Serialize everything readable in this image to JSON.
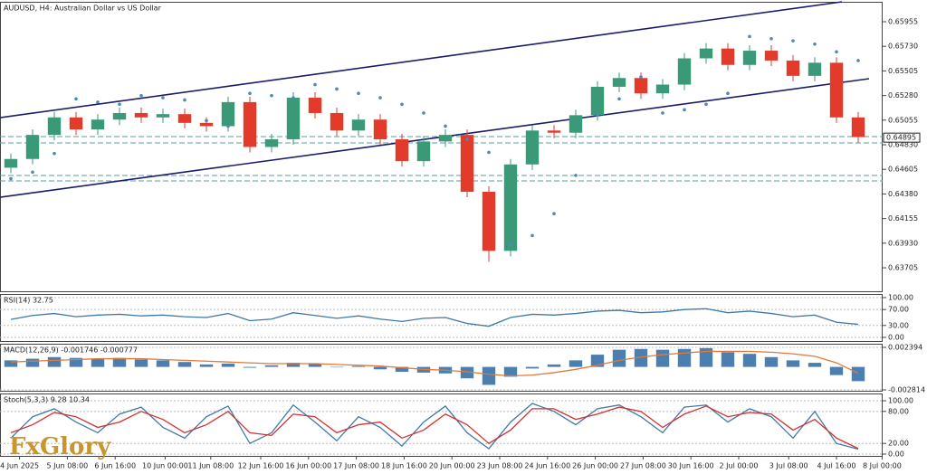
{
  "chart_data": [
    {
      "type": "candlestick",
      "title": "AUDUSD, H4:  Australian Dollar vs US Dollar",
      "logo": "FxGlory",
      "open": [
        0.6462,
        0.647,
        0.6492,
        0.6508,
        0.6497,
        0.6506,
        0.6512,
        0.6508,
        0.6511,
        0.6503,
        0.65,
        0.6522,
        0.6481,
        0.6488,
        0.6526,
        0.6512,
        0.6496,
        0.6506,
        0.6488,
        0.6468,
        0.6486,
        0.6492,
        0.644,
        0.6386,
        0.6465,
        0.6496,
        0.6494,
        0.651,
        0.6536,
        0.6544,
        0.653,
        0.6538,
        0.6562,
        0.6571,
        0.6556,
        0.6569,
        0.656,
        0.6546,
        0.6558,
        0.6508
      ],
      "high": [
        0.6475,
        0.6497,
        0.6513,
        0.6513,
        0.6511,
        0.6517,
        0.6517,
        0.6516,
        0.6516,
        0.6508,
        0.6527,
        0.6527,
        0.6493,
        0.6531,
        0.6531,
        0.6517,
        0.6511,
        0.6511,
        0.6493,
        0.6491,
        0.6497,
        0.6497,
        0.6445,
        0.647,
        0.6501,
        0.6501,
        0.6515,
        0.6541,
        0.6549,
        0.6549,
        0.6543,
        0.6567,
        0.6576,
        0.6576,
        0.6574,
        0.6574,
        0.6565,
        0.6563,
        0.6563,
        0.6513
      ],
      "low": [
        0.6457,
        0.6465,
        0.6487,
        0.6492,
        0.6492,
        0.6501,
        0.6503,
        0.6503,
        0.6498,
        0.6495,
        0.6495,
        0.6476,
        0.6476,
        0.6483,
        0.6507,
        0.6491,
        0.6491,
        0.6483,
        0.6463,
        0.6463,
        0.6481,
        0.6435,
        0.6376,
        0.6381,
        0.646,
        0.6489,
        0.6489,
        0.6505,
        0.6531,
        0.6525,
        0.6525,
        0.6533,
        0.6557,
        0.6551,
        0.6551,
        0.6555,
        0.6541,
        0.6541,
        0.6503,
        0.6485
      ],
      "close": [
        0.647,
        0.6492,
        0.6508,
        0.6497,
        0.6506,
        0.6512,
        0.6508,
        0.6511,
        0.6503,
        0.65,
        0.6522,
        0.6481,
        0.6488,
        0.6526,
        0.6512,
        0.6496,
        0.6506,
        0.6488,
        0.6468,
        0.6486,
        0.6492,
        0.644,
        0.6386,
        0.6465,
        0.6496,
        0.6494,
        0.651,
        0.6536,
        0.6544,
        0.653,
        0.6538,
        0.6562,
        0.6571,
        0.6556,
        0.6569,
        0.656,
        0.6546,
        0.6558,
        0.6508,
        0.649
      ],
      "up_color": "#3a9a78",
      "down_color": "#e23b2b",
      "sar": {
        "color": "#4d88ba",
        "values": [
          0.6452,
          0.6458,
          0.6475,
          0.6525,
          0.6522,
          0.652,
          0.6528,
          0.6526,
          0.6524,
          0.6505,
          0.65,
          0.653,
          0.6528,
          0.6526,
          0.6538,
          0.6534,
          0.653,
          0.6526,
          0.652,
          0.6512,
          0.65,
          0.6488,
          0.6476,
          0.6392,
          0.64,
          0.642,
          0.6455,
          0.651,
          0.6525,
          0.6545,
          0.6512,
          0.6515,
          0.652,
          0.653,
          0.6582,
          0.658,
          0.6578,
          0.6575,
          0.6568,
          0.656
        ]
      },
      "channel_color": "#1c1c6b",
      "channel_lines": [
        {
          "x": [
            -0.5,
            38.25
          ],
          "y": [
            0.65078,
            0.66137
          ]
        },
        {
          "x": [
            -0.5,
            39.5
          ],
          "y": [
            0.6435,
            0.65434
          ]
        }
      ],
      "level_color": "#5a9ea0",
      "levels": [
        0.64905,
        0.64847,
        0.64549,
        0.64499
      ],
      "current_price": 0.64895,
      "xlim": [
        -0.5,
        40.125
      ],
      "xticks": [
        {
          "value": 0.4,
          "label": "4 Jun 2025"
        },
        {
          "value": 2.6,
          "label": "5 Jun 08:00"
        },
        {
          "value": 4.8,
          "label": "6 Jun 16:00"
        },
        {
          "value": 7.1,
          "label": "10 Jun 00:00"
        },
        {
          "value": 9.2,
          "label": "11 Jun 08:00"
        },
        {
          "value": 11.5,
          "label": "12 Jun 16:00"
        },
        {
          "value": 13.7,
          "label": "16 Jun 00:00"
        },
        {
          "value": 15.9,
          "label": "17 Jun 08:00"
        },
        {
          "value": 18.1,
          "label": "18 Jun 16:00"
        },
        {
          "value": 20.3,
          "label": "20 Jun 00:00"
        },
        {
          "value": 22.5,
          "label": "23 Jun 08:00"
        },
        {
          "value": 24.7,
          "label": "24 Jun 16:00"
        },
        {
          "value": 26.9,
          "label": "26 Jun 00:00"
        },
        {
          "value": 29.1,
          "label": "27 Jun 08:00"
        },
        {
          "value": 31.3,
          "label": "30 Jun 16:00"
        },
        {
          "value": 33.5,
          "label": "2 Jul 00:00"
        },
        {
          "value": 35.8,
          "label": "3 Jul 08:00"
        },
        {
          "value": 38,
          "label": "4 Jul 16:00"
        },
        {
          "value": 40.1,
          "label": "8 Jul 00:00"
        }
      ],
      "ylim": [
        0.63482,
        0.66137
      ],
      "yticks": [
        0.65955,
        {
          "value": 0.6573,
          "label": "0.65730"
        },
        0.65505,
        {
          "value": 0.6528,
          "label": "0.65280"
        },
        0.65055,
        {
          "value": 0.6483,
          "label": "0.64830"
        },
        0.64605,
        {
          "value": 0.6438,
          "label": "0.64380"
        },
        0.64155,
        {
          "value": 0.6393,
          "label": "0.63930"
        },
        0.63705
      ]
    },
    {
      "type": "line",
      "title": "RSI(14) 32.75",
      "series": [
        {
          "color": "#3f78a8",
          "values": [
            45,
            55,
            60,
            52,
            56,
            58,
            54,
            56,
            52,
            50,
            60,
            42,
            46,
            62,
            55,
            48,
            54,
            46,
            40,
            48,
            50,
            35,
            28,
            50,
            58,
            56,
            60,
            66,
            68,
            62,
            64,
            70,
            72,
            62,
            66,
            60,
            52,
            56,
            38,
            32.75
          ]
        }
      ],
      "ylim": [
        -11.4,
        109
      ],
      "yticks": [
        {
          "value": 100,
          "label": "100.00"
        },
        {
          "value": 70,
          "label": "70.00"
        },
        {
          "value": 30,
          "label": "30.00"
        },
        {
          "value": 0,
          "label": "0.00"
        }
      ]
    },
    {
      "type": "bar",
      "title": "MACD(12,26,9) -0.001746 -0.000777",
      "series": [
        {
          "type": "bar",
          "color": "#4a7fb0",
          "values": [
            0.0008,
            0.001,
            0.0012,
            0.0011,
            0.001,
            0.0011,
            0.0009,
            0.0008,
            0.0006,
            0.0003,
            0.0004,
            -0.0001,
            0.0002,
            0.0005,
            0.0004,
            0,
            0.0001,
            -0.0003,
            -0.0006,
            -0.0007,
            -0.0008,
            -0.0014,
            -0.0022,
            -0.0012,
            -0.0002,
            0.0003,
            0.0008,
            0.0015,
            0.0021,
            0.0022,
            0.0021,
            0.0022,
            0.0023,
            0.0018,
            0.0016,
            0.0012,
            0.0008,
            0.0005,
            -0.001,
            -0.001746
          ]
        },
        {
          "type": "line",
          "color": "#e07a3a",
          "values": [
            0.0006,
            0.0007,
            0.0008,
            0.0009,
            0.001,
            0.001,
            0.001,
            0.0009,
            0.0008,
            0.0007,
            0.0006,
            0.0005,
            0.0004,
            0.0004,
            0.0004,
            0.0003,
            0.0002,
            0.0001,
            -0.0001,
            -0.0003,
            -0.0004,
            -0.0006,
            -0.0009,
            -0.0011,
            -0.001,
            -0.0007,
            -0.0003,
            0.0002,
            0.0008,
            0.0012,
            0.0015,
            0.0017,
            0.0019,
            0.0019,
            0.0019,
            0.0018,
            0.0016,
            0.0013,
            0.0005,
            -0.000777
          ]
        }
      ],
      "ylim": [
        -0.003036,
        0.002837
      ],
      "yticks": [
        0.002394,
        -0.002814
      ]
    },
    {
      "type": "line",
      "title": "Stoch(5,3,3) 9.28 10.34",
      "series": [
        {
          "color": "#3f78a8",
          "values": [
            30,
            70,
            85,
            60,
            40,
            75,
            88,
            50,
            30,
            70,
            90,
            20,
            40,
            92,
            60,
            25,
            70,
            50,
            15,
            60,
            90,
            40,
            10,
            60,
            95,
            80,
            55,
            85,
            92,
            70,
            40,
            88,
            92,
            60,
            85,
            70,
            30,
            80,
            20,
            9.28
          ]
        },
        {
          "color": "#d43030",
          "values": [
            40,
            55,
            78,
            70,
            50,
            60,
            80,
            65,
            40,
            55,
            80,
            40,
            35,
            75,
            70,
            40,
            55,
            60,
            30,
            45,
            75,
            55,
            20,
            45,
            85,
            85,
            65,
            75,
            88,
            80,
            50,
            75,
            90,
            70,
            78,
            75,
            45,
            65,
            30,
            10.34
          ]
        }
      ],
      "ylim": [
        -5.1,
        113.6
      ],
      "yticks": [
        {
          "value": 100,
          "label": "100.00"
        },
        {
          "value": 80,
          "label": "80.00"
        },
        {
          "value": 20,
          "label": "20.00"
        },
        {
          "value": 0,
          "label": "0.00"
        }
      ]
    }
  ]
}
